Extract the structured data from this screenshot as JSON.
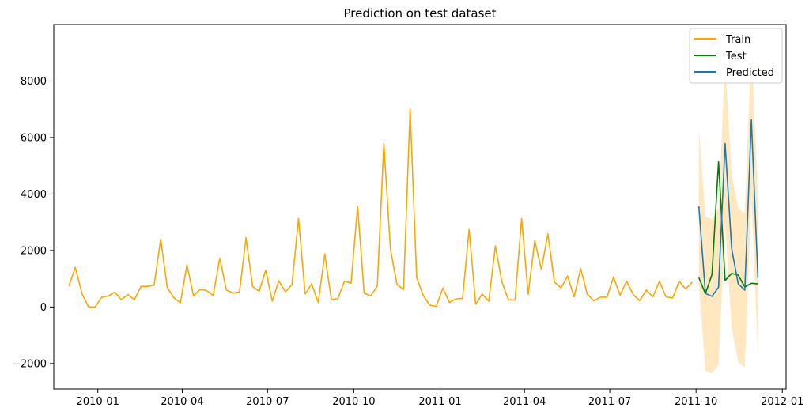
{
  "chart_data": {
    "type": "line",
    "title": "Prediction on test dataset",
    "xlabel": "",
    "ylabel": "",
    "x_axis": {
      "type": "date",
      "range": [
        "2009-11-15",
        "2012-01-05"
      ],
      "ticks": [
        "2010-01-01",
        "2010-04-01",
        "2010-07-01",
        "2010-10-01",
        "2011-01-01",
        "2011-04-01",
        "2011-07-01",
        "2011-10-01",
        "2012-01-01"
      ],
      "tick_labels": [
        "2010-01",
        "2010-04",
        "2010-07",
        "2010-10",
        "2011-01",
        "2011-04",
        "2011-07",
        "2011-10",
        "2012-01"
      ]
    },
    "y_axis": {
      "range": [
        -2900,
        10000
      ],
      "ticks": [
        -2000,
        0,
        2000,
        4000,
        6000,
        8000
      ],
      "tick_labels": [
        "−2000",
        "0",
        "2000",
        "4000",
        "6000",
        "8000"
      ]
    },
    "grid": false,
    "legend": {
      "position": "top-right",
      "entries": [
        "Train",
        "Test",
        "Predicted"
      ]
    },
    "series": [
      {
        "name": "Train",
        "color": "#ffa500",
        "x": [
          "2009-12-01",
          "2009-12-08",
          "2009-12-15",
          "2009-12-22",
          "2009-12-29",
          "2010-01-05",
          "2010-01-12",
          "2010-01-19",
          "2010-01-26",
          "2010-02-02",
          "2010-02-09",
          "2010-02-16",
          "2010-02-23",
          "2010-03-02",
          "2010-03-09",
          "2010-03-16",
          "2010-03-23",
          "2010-03-30",
          "2010-04-06",
          "2010-04-13",
          "2010-04-20",
          "2010-04-27",
          "2010-05-04",
          "2010-05-11",
          "2010-05-18",
          "2010-05-25",
          "2010-06-01",
          "2010-06-08",
          "2010-06-15",
          "2010-06-22",
          "2010-06-29",
          "2010-07-06",
          "2010-07-13",
          "2010-07-20",
          "2010-07-27",
          "2010-08-03",
          "2010-08-10",
          "2010-08-17",
          "2010-08-24",
          "2010-08-31",
          "2010-09-07",
          "2010-09-14",
          "2010-09-21",
          "2010-09-28",
          "2010-10-05",
          "2010-10-12",
          "2010-10-19",
          "2010-10-26",
          "2010-11-02",
          "2010-11-09",
          "2010-11-16",
          "2010-11-23",
          "2010-11-30",
          "2010-12-07",
          "2010-12-14",
          "2010-12-21",
          "2010-12-28",
          "2011-01-04",
          "2011-01-11",
          "2011-01-18",
          "2011-01-25",
          "2011-02-01",
          "2011-02-08",
          "2011-02-15",
          "2011-02-22",
          "2011-03-01",
          "2011-03-08",
          "2011-03-15",
          "2011-03-22",
          "2011-03-29",
          "2011-04-05",
          "2011-04-12",
          "2011-04-19",
          "2011-04-26",
          "2011-05-03",
          "2011-05-10",
          "2011-05-17",
          "2011-05-24",
          "2011-05-31",
          "2011-06-07",
          "2011-06-14",
          "2011-06-21",
          "2011-06-28",
          "2011-07-05",
          "2011-07-12",
          "2011-07-19",
          "2011-07-26",
          "2011-08-02",
          "2011-08-09",
          "2011-08-16",
          "2011-08-23",
          "2011-08-30",
          "2011-09-06",
          "2011-09-13",
          "2011-09-20",
          "2011-09-27"
        ],
        "values": [
          740,
          1400,
          480,
          10,
          0,
          340,
          390,
          530,
          260,
          440,
          260,
          730,
          730,
          770,
          2400,
          700,
          330,
          150,
          1490,
          400,
          620,
          580,
          410,
          1730,
          600,
          500,
          530,
          2450,
          730,
          560,
          1300,
          210,
          930,
          540,
          790,
          3140,
          460,
          820,
          160,
          1880,
          260,
          300,
          920,
          840,
          3560,
          490,
          400,
          740,
          5780,
          2050,
          800,
          620,
          7010,
          1040,
          420,
          70,
          20,
          670,
          160,
          290,
          300,
          2740,
          100,
          460,
          210,
          2160,
          890,
          250,
          250,
          3130,
          450,
          2350,
          1330,
          2590,
          880,
          680,
          1100,
          360,
          1360,
          460,
          220,
          350,
          350,
          1060,
          420,
          920,
          440,
          230,
          600,
          360,
          910,
          360,
          320,
          910,
          640,
          880
        ]
      },
      {
        "name": "Test",
        "color": "#008000",
        "x": [
          "2011-10-04",
          "2011-10-11",
          "2011-10-18",
          "2011-10-25",
          "2011-11-01",
          "2011-11-08",
          "2011-11-15",
          "2011-11-22",
          "2011-11-29",
          "2011-12-06"
        ],
        "values": [
          1040,
          470,
          1150,
          5140,
          940,
          1190,
          1130,
          710,
          840,
          820
        ]
      },
      {
        "name": "Predicted",
        "color": "#1f77b4",
        "x": [
          "2011-10-04",
          "2011-10-11",
          "2011-10-18",
          "2011-10-25",
          "2011-11-01",
          "2011-11-08",
          "2011-11-15",
          "2011-11-22",
          "2011-11-29",
          "2011-12-06"
        ],
        "values": [
          3560,
          480,
          380,
          700,
          5790,
          2060,
          820,
          600,
          6630,
          1030
        ],
        "band_color": "#ffa500",
        "band_upper": [
          6300,
          3210,
          3110,
          3500,
          8700,
          4700,
          3500,
          3300,
          9300,
          3900
        ],
        "band_lower": [
          820,
          -2250,
          -2350,
          -2050,
          2900,
          -720,
          -1950,
          -2130,
          3900,
          -1700
        ]
      }
    ]
  }
}
